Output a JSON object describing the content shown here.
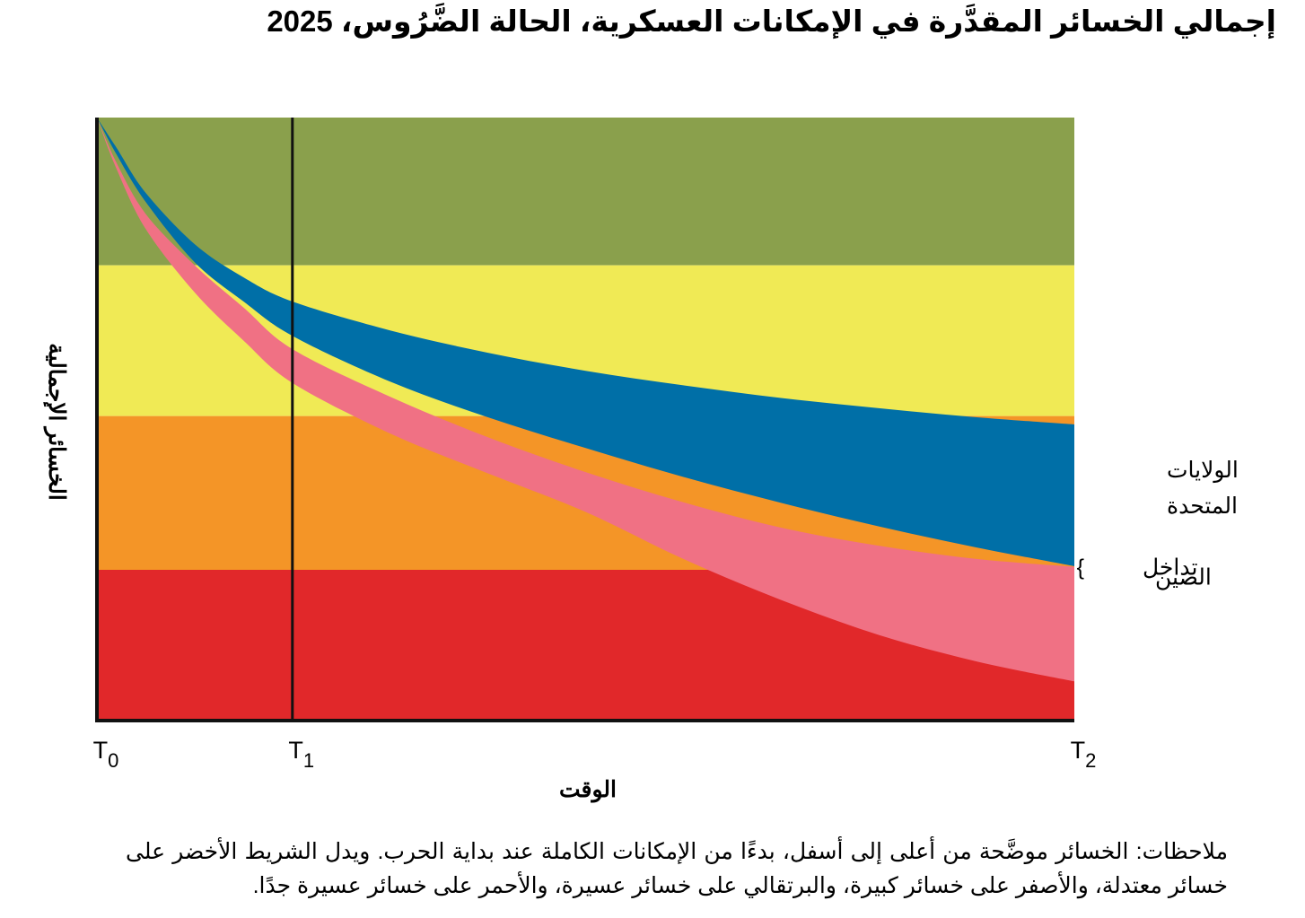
{
  "chart_data": {
    "type": "area",
    "title": "إجمالي الخسائر المقدَّرة في الإمكانات العسكرية، الحالة الضَّرُوس، 2025",
    "xlabel": "الوقت",
    "ylabel": "الخسائر الإجمالية",
    "x_ticks": [
      {
        "name": "T0",
        "base": "T",
        "sub": "0",
        "x": 0
      },
      {
        "name": "T1",
        "base": "T",
        "sub": "1",
        "x": 0.2
      },
      {
        "name": "T2",
        "base": "T",
        "sub": "2",
        "x": 1
      }
    ],
    "x_range": [
      0,
      1
    ],
    "y_range": [
      0,
      100
    ],
    "reference_line": {
      "label": "T1",
      "x": 0.2
    },
    "bands": [
      {
        "name": "moderate",
        "y_from": 75.5,
        "y_to": 100,
        "color": "#8aa04c"
      },
      {
        "name": "significant",
        "y_from": 50.5,
        "y_to": 75.5,
        "color": "#f0ea55"
      },
      {
        "name": "difficult",
        "y_from": 25,
        "y_to": 50.5,
        "color": "#f49527"
      },
      {
        "name": "very-difficult",
        "y_from": 0,
        "y_to": 25,
        "color": "#e1282a"
      }
    ],
    "series": [
      {
        "name": "الولايات المتحدة",
        "label_lines": [
          "الولايات",
          "المتحدة"
        ],
        "color": "#006fa7",
        "x": [
          0,
          0.02,
          0.05,
          0.1,
          0.15,
          0.2,
          0.3,
          0.4,
          0.5,
          0.6,
          0.7,
          0.8,
          0.9,
          1.0
        ],
        "upper": [
          100,
          95,
          87.5,
          79,
          73.5,
          69.5,
          64.7,
          61,
          58,
          55.6,
          53.5,
          51.8,
          50.3,
          49.1
        ],
        "lower": [
          100,
          93.9,
          86,
          76,
          69.5,
          63.8,
          56.2,
          50.3,
          45.2,
          40.4,
          36.1,
          32.2,
          28.7,
          25.6
        ]
      },
      {
        "name": "الصين",
        "label_lines": [
          "الصين"
        ],
        "color": "#f07184",
        "x": [
          0,
          0.02,
          0.05,
          0.1,
          0.15,
          0.2,
          0.3,
          0.4,
          0.5,
          0.6,
          0.7,
          0.8,
          0.9,
          1.0
        ],
        "upper": [
          100,
          92.5,
          84,
          75.5,
          68.5,
          61.6,
          53.7,
          47,
          41.2,
          36.2,
          32,
          29,
          26.8,
          25.5
        ],
        "lower": [
          100,
          91.5,
          81.5,
          71,
          63,
          56,
          47.6,
          41,
          34.6,
          26.8,
          20,
          14.2,
          9.8,
          6.5
        ]
      }
    ],
    "overlap_label": "تداخل",
    "overlap_brace": "{",
    "legend": "right-of-plot"
  },
  "notes": {
    "text": "ملاحظات: الخسائر موضَّحة من أعلى إلى أسفل، بدءًا من الإمكانات الكاملة عند بداية الحرب. ويدل الشريط الأخضر على خسائر معتدلة، والأصفر على خسائر كبيرة، والبرتقالي على خسائر عسيرة، والأحمر على خسائر عسيرة جدًا."
  }
}
